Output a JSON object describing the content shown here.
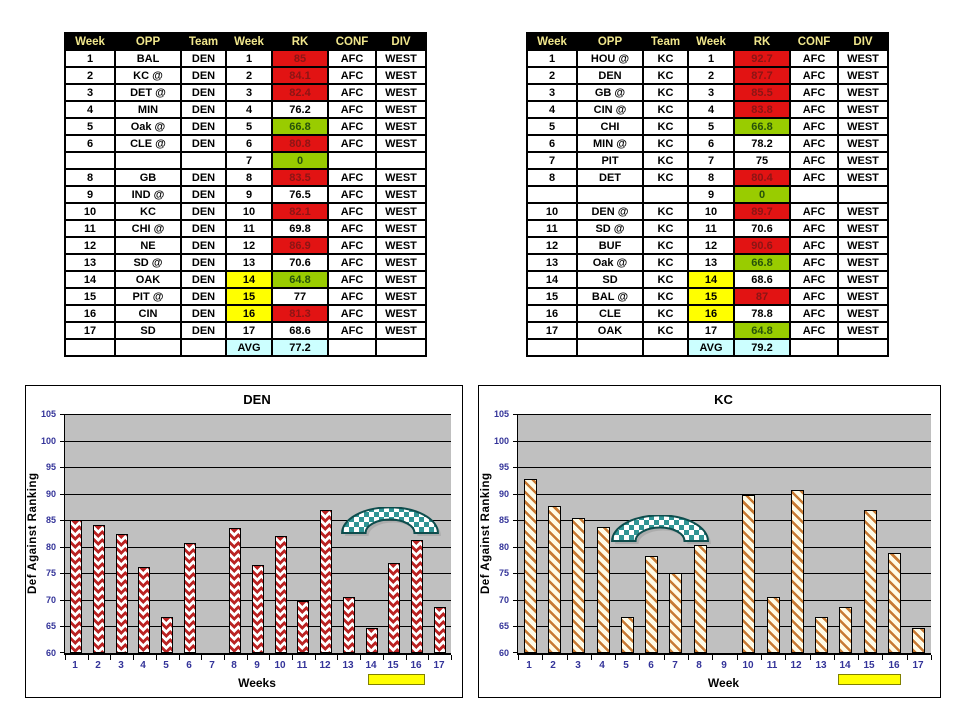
{
  "colors": {
    "header_bg": "#000000",
    "header_text": "#f0e68c",
    "red_bg": "#e21313",
    "red_text": "#8b1515",
    "green_bg": "#99cc00",
    "green_text": "#27520a",
    "yellow_bg": "#ffff00",
    "avg_bg": "#ccffff",
    "plot_bg": "#c0c0c0",
    "axis_text": "#333399",
    "den_bar_pattern": "#bb2424",
    "kc_bar_pattern": "#c87a33",
    "arc_fill": "#2f9494",
    "arc_stroke": "#0e4d4d"
  },
  "tables": [
    {
      "name": "DEN schedule",
      "headers": [
        "Week",
        "OPP",
        "Team",
        "Week",
        "RK",
        "CONF",
        "DIV"
      ],
      "rows": [
        {
          "week": "1",
          "opp": "BAL",
          "team": "DEN",
          "week2": "1",
          "rk": "85",
          "conf": "AFC",
          "div": "WEST",
          "rk_status": "red",
          "week_hl": false
        },
        {
          "week": "2",
          "opp": "KC @",
          "team": "DEN",
          "week2": "2",
          "rk": "84.1",
          "conf": "AFC",
          "div": "WEST",
          "rk_status": "red",
          "week_hl": false
        },
        {
          "week": "3",
          "opp": "DET @",
          "team": "DEN",
          "week2": "3",
          "rk": "82.4",
          "conf": "AFC",
          "div": "WEST",
          "rk_status": "red",
          "week_hl": false
        },
        {
          "week": "4",
          "opp": "MIN",
          "team": "DEN",
          "week2": "4",
          "rk": "76.2",
          "conf": "AFC",
          "div": "WEST",
          "rk_status": "plain",
          "week_hl": false
        },
        {
          "week": "5",
          "opp": "Oak @",
          "team": "DEN",
          "week2": "5",
          "rk": "66.8",
          "conf": "AFC",
          "div": "WEST",
          "rk_status": "green",
          "week_hl": false
        },
        {
          "week": "6",
          "opp": "CLE @",
          "team": "DEN",
          "week2": "6",
          "rk": "80.8",
          "conf": "AFC",
          "div": "WEST",
          "rk_status": "red",
          "week_hl": false
        },
        {
          "week": "",
          "opp": "",
          "team": "",
          "week2": "7",
          "rk": "0",
          "conf": "",
          "div": "",
          "rk_status": "green",
          "week_hl": false
        },
        {
          "week": "8",
          "opp": "GB",
          "team": "DEN",
          "week2": "8",
          "rk": "83.5",
          "conf": "AFC",
          "div": "WEST",
          "rk_status": "red",
          "week_hl": false
        },
        {
          "week": "9",
          "opp": "IND @",
          "team": "DEN",
          "week2": "9",
          "rk": "76.5",
          "conf": "AFC",
          "div": "WEST",
          "rk_status": "plain",
          "week_hl": false
        },
        {
          "week": "10",
          "opp": "KC",
          "team": "DEN",
          "week2": "10",
          "rk": "82.1",
          "conf": "AFC",
          "div": "WEST",
          "rk_status": "red",
          "week_hl": false
        },
        {
          "week": "11",
          "opp": "CHI @",
          "team": "DEN",
          "week2": "11",
          "rk": "69.8",
          "conf": "AFC",
          "div": "WEST",
          "rk_status": "plain",
          "week_hl": false
        },
        {
          "week": "12",
          "opp": "NE",
          "team": "DEN",
          "week2": "12",
          "rk": "86.9",
          "conf": "AFC",
          "div": "WEST",
          "rk_status": "red",
          "week_hl": false
        },
        {
          "week": "13",
          "opp": "SD @",
          "team": "DEN",
          "week2": "13",
          "rk": "70.6",
          "conf": "AFC",
          "div": "WEST",
          "rk_status": "plain",
          "week_hl": false
        },
        {
          "week": "14",
          "opp": "OAK",
          "team": "DEN",
          "week2": "14",
          "rk": "64.8",
          "conf": "AFC",
          "div": "WEST",
          "rk_status": "green",
          "week_hl": true
        },
        {
          "week": "15",
          "opp": "PIT @",
          "team": "DEN",
          "week2": "15",
          "rk": "77",
          "conf": "AFC",
          "div": "WEST",
          "rk_status": "plain",
          "week_hl": true
        },
        {
          "week": "16",
          "opp": "CIN",
          "team": "DEN",
          "week2": "16",
          "rk": "81.3",
          "conf": "AFC",
          "div": "WEST",
          "rk_status": "red",
          "week_hl": true
        },
        {
          "week": "17",
          "opp": "SD",
          "team": "DEN",
          "week2": "17",
          "rk": "68.6",
          "conf": "AFC",
          "div": "WEST",
          "rk_status": "plain",
          "week_hl": false
        }
      ],
      "avg_label": "AVG",
      "avg_value": "77.2"
    },
    {
      "name": "KC schedule",
      "headers": [
        "Week",
        "OPP",
        "Team",
        "Week",
        "RK",
        "CONF",
        "DIV"
      ],
      "rows": [
        {
          "week": "1",
          "opp": "HOU @",
          "team": "KC",
          "week2": "1",
          "rk": "92.7",
          "conf": "AFC",
          "div": "WEST",
          "rk_status": "red",
          "week_hl": false
        },
        {
          "week": "2",
          "opp": "DEN",
          "team": "KC",
          "week2": "2",
          "rk": "87.7",
          "conf": "AFC",
          "div": "WEST",
          "rk_status": "red",
          "week_hl": false
        },
        {
          "week": "3",
          "opp": "GB @",
          "team": "KC",
          "week2": "3",
          "rk": "85.5",
          "conf": "AFC",
          "div": "WEST",
          "rk_status": "red",
          "week_hl": false
        },
        {
          "week": "4",
          "opp": "CIN @",
          "team": "KC",
          "week2": "4",
          "rk": "83.8",
          "conf": "AFC",
          "div": "WEST",
          "rk_status": "red",
          "week_hl": false
        },
        {
          "week": "5",
          "opp": "CHI",
          "team": "KC",
          "week2": "5",
          "rk": "66.8",
          "conf": "AFC",
          "div": "WEST",
          "rk_status": "green",
          "week_hl": false
        },
        {
          "week": "6",
          "opp": "MIN @",
          "team": "KC",
          "week2": "6",
          "rk": "78.2",
          "conf": "AFC",
          "div": "WEST",
          "rk_status": "plain",
          "week_hl": false
        },
        {
          "week": "7",
          "opp": "PIT",
          "team": "KC",
          "week2": "7",
          "rk": "75",
          "conf": "AFC",
          "div": "WEST",
          "rk_status": "plain",
          "week_hl": false
        },
        {
          "week": "8",
          "opp": "DET",
          "team": "KC",
          "week2": "8",
          "rk": "80.4",
          "conf": "AFC",
          "div": "WEST",
          "rk_status": "red",
          "week_hl": false
        },
        {
          "week": "",
          "opp": "",
          "team": "",
          "week2": "9",
          "rk": "0",
          "conf": "",
          "div": "",
          "rk_status": "green",
          "week_hl": false
        },
        {
          "week": "10",
          "opp": "DEN @",
          "team": "KC",
          "week2": "10",
          "rk": "89.7",
          "conf": "AFC",
          "div": "WEST",
          "rk_status": "red",
          "week_hl": false
        },
        {
          "week": "11",
          "opp": "SD @",
          "team": "KC",
          "week2": "11",
          "rk": "70.6",
          "conf": "AFC",
          "div": "WEST",
          "rk_status": "plain",
          "week_hl": false
        },
        {
          "week": "12",
          "opp": "BUF",
          "team": "KC",
          "week2": "12",
          "rk": "90.6",
          "conf": "AFC",
          "div": "WEST",
          "rk_status": "red",
          "week_hl": false
        },
        {
          "week": "13",
          "opp": "Oak @",
          "team": "KC",
          "week2": "13",
          "rk": "66.8",
          "conf": "AFC",
          "div": "WEST",
          "rk_status": "green",
          "week_hl": false
        },
        {
          "week": "14",
          "opp": "SD",
          "team": "KC",
          "week2": "14",
          "rk": "68.6",
          "conf": "AFC",
          "div": "WEST",
          "rk_status": "plain",
          "week_hl": true
        },
        {
          "week": "15",
          "opp": "BAL @",
          "team": "KC",
          "week2": "15",
          "rk": "87",
          "conf": "AFC",
          "div": "WEST",
          "rk_status": "red",
          "week_hl": true
        },
        {
          "week": "16",
          "opp": "CLE",
          "team": "KC",
          "week2": "16",
          "rk": "78.8",
          "conf": "AFC",
          "div": "WEST",
          "rk_status": "plain",
          "week_hl": true
        },
        {
          "week": "17",
          "opp": "OAK",
          "team": "KC",
          "week2": "17",
          "rk": "64.8",
          "conf": "AFC",
          "div": "WEST",
          "rk_status": "green",
          "week_hl": false
        }
      ],
      "avg_label": "AVG",
      "avg_value": "79.2"
    }
  ],
  "chart_data": [
    {
      "type": "bar",
      "title": "DEN",
      "xlabel": "Weeks",
      "ylabel": "Def Against Ranking",
      "categories": [
        "1",
        "2",
        "3",
        "4",
        "5",
        "6",
        "7",
        "8",
        "9",
        "10",
        "11",
        "12",
        "13",
        "14",
        "15",
        "16",
        "17"
      ],
      "values": [
        85,
        84.1,
        82.4,
        76.2,
        66.8,
        80.8,
        0,
        83.5,
        76.5,
        82.1,
        69.8,
        86.9,
        70.6,
        64.8,
        77,
        81.3,
        68.6
      ],
      "ylim": [
        60,
        105
      ],
      "ytick_step": 5,
      "grid": true,
      "legend": false,
      "bar_pattern": "red-diamonds",
      "annotations": {
        "arc": {
          "weeks": [
            12.6,
            17.1
          ],
          "values": [
            82.5,
            87.5
          ]
        },
        "underline_weeks": [
          13.9,
          16.4
        ]
      }
    },
    {
      "type": "bar",
      "title": "KC",
      "xlabel": "Week",
      "ylabel": "Def Against Ranking",
      "categories": [
        "1",
        "2",
        "3",
        "4",
        "5",
        "6",
        "7",
        "8",
        "9",
        "10",
        "11",
        "12",
        "13",
        "14",
        "15",
        "16",
        "17"
      ],
      "values": [
        92.7,
        87.7,
        85.5,
        83.8,
        66.8,
        78.2,
        75,
        80.4,
        0,
        89.7,
        70.6,
        90.6,
        66.8,
        68.6,
        87,
        78.8,
        64.8
      ],
      "ylim": [
        60,
        105
      ],
      "ytick_step": 5,
      "grid": true,
      "legend": false,
      "bar_pattern": "orange-stripes",
      "annotations": {
        "arc": {
          "weeks": [
            4.3,
            8.5
          ],
          "values": [
            81,
            86
          ]
        },
        "underline_weeks": [
          13.7,
          16.3
        ]
      }
    }
  ]
}
